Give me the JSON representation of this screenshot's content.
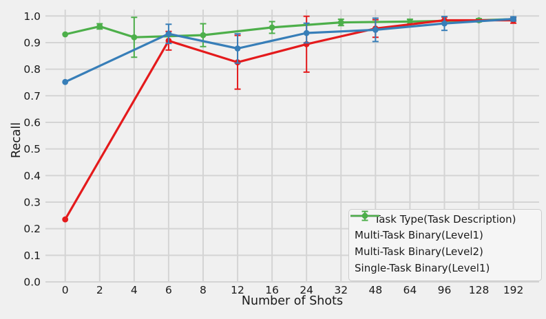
{
  "chart_data": {
    "type": "line",
    "title": "",
    "xlabel": "Number of Shots",
    "ylabel": "Recall",
    "x_tick_labels": [
      "0",
      "2",
      "4",
      "6",
      "8",
      "12",
      "16",
      "24",
      "32",
      "48",
      "64",
      "96",
      "128",
      "192"
    ],
    "y_tick_labels": [
      "0.0",
      "0.1",
      "0.2",
      "0.3",
      "0.4",
      "0.5",
      "0.6",
      "0.7",
      "0.8",
      "0.9",
      "1.0"
    ],
    "y_ticks": [
      0.0,
      0.1,
      0.2,
      0.3,
      0.4,
      0.5,
      0.6,
      0.7,
      0.8,
      0.9,
      1.0
    ],
    "ylim": [
      0.0,
      1.05
    ],
    "grid": true,
    "background_color": "#f0f0f0",
    "grid_color": "#d4d4d4",
    "text_color": "#1a1a1a",
    "legend": {
      "title": "Task Type(Task Description)",
      "position": "lower right"
    },
    "series": [
      {
        "name": "Multi-Task Binary(Level1)",
        "color": "#e41a1c",
        "x_values": [
          0,
          6,
          12,
          24,
          48,
          96,
          192
        ],
        "x_indices": [
          0,
          3,
          5,
          7,
          9,
          11,
          13
        ],
        "y": [
          0.235,
          0.907,
          0.826,
          0.894,
          0.953,
          0.984,
          0.984
        ],
        "yerr": [
          0,
          0.035,
          0.101,
          0.105,
          0.033,
          0.012,
          0.011
        ]
      },
      {
        "name": "Multi-Task Binary(Level2)",
        "color": "#377eb8",
        "x_values": [
          0,
          6,
          12,
          24,
          48,
          96,
          192
        ],
        "x_indices": [
          0,
          3,
          5,
          7,
          9,
          11,
          13
        ],
        "y": [
          0.752,
          0.933,
          0.878,
          0.936,
          0.948,
          0.972,
          0.989
        ],
        "yerr": [
          0,
          0.036,
          0.055,
          0.037,
          0.044,
          0.026,
          0.008
        ]
      },
      {
        "name": "Single-Task Binary(Level1)",
        "color": "#4daf4a",
        "x_values": [
          0,
          2,
          4,
          8,
          16,
          32,
          64,
          128,
          192
        ],
        "x_indices": [
          0,
          1,
          2,
          4,
          6,
          8,
          10,
          12,
          13
        ],
        "y": [
          0.931,
          0.961,
          0.92,
          0.928,
          0.957,
          0.976,
          0.979,
          0.984,
          0.988
        ],
        "yerr": [
          0,
          0.01,
          0.075,
          0.043,
          0.022,
          0.012,
          0.009,
          0.006,
          0
        ]
      }
    ]
  }
}
